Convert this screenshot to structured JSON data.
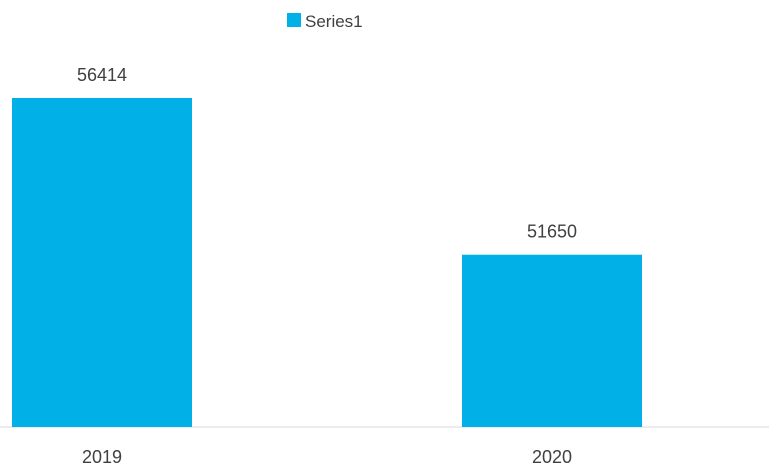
{
  "chart_data": {
    "type": "bar",
    "categories": [
      "2019",
      "2020"
    ],
    "series": [
      {
        "name": "Series1",
        "values": [
          56414,
          51650
        ],
        "color": "#00B0E6"
      }
    ],
    "data_labels": [
      "56414",
      "51650"
    ],
    "legend": {
      "position": "top",
      "entries": [
        "Series1"
      ]
    },
    "grid": false,
    "title": "",
    "xlabel": "",
    "ylabel": ""
  }
}
